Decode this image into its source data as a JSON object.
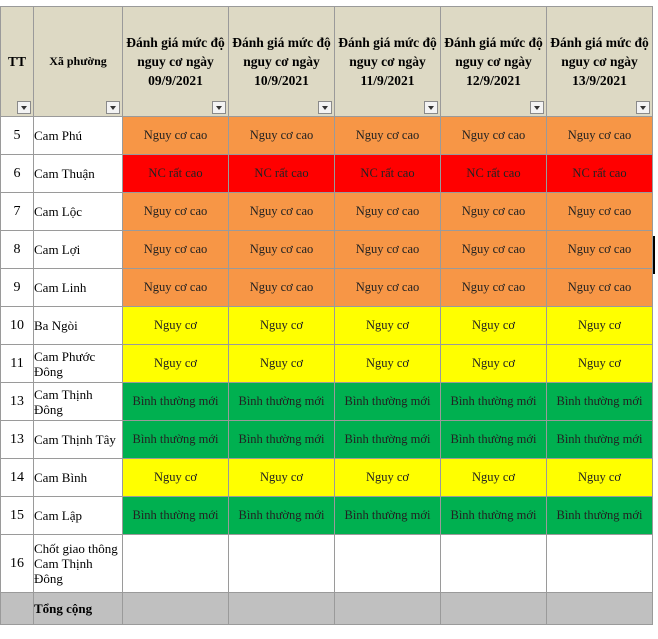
{
  "header": {
    "tt": "TT",
    "ward": "Xã phường",
    "dates": [
      "Đánh giá mức độ nguy cơ ngày 09/9/2021",
      "Đánh giá mức độ nguy cơ ngày 10/9/2021",
      "Đánh giá mức độ nguy cơ ngày 11/9/2021",
      "Đánh giá mức độ nguy cơ ngày 12/9/2021",
      "Đánh giá mức độ nguy cơ ngày 13/9/2021"
    ]
  },
  "status_colors": {
    "Nguy cơ cao": "#f79646",
    "NC rất cao": "#ff0000",
    "Nguy cơ": "#ffff00",
    "Bình thường mới": "#00b050"
  },
  "rows": [
    {
      "tt": "5",
      "name": "Cam Phú",
      "s": [
        "Nguy cơ cao",
        "Nguy cơ cao",
        "Nguy cơ cao",
        "Nguy cơ cao",
        "Nguy cơ cao"
      ]
    },
    {
      "tt": "6",
      "name": "Cam Thuận",
      "s": [
        "NC rất cao",
        "NC rất cao",
        "NC rất cao",
        "NC rất cao",
        "NC rất cao"
      ]
    },
    {
      "tt": "7",
      "name": "Cam Lộc",
      "s": [
        "Nguy cơ cao",
        "Nguy cơ cao",
        "Nguy cơ cao",
        "Nguy cơ cao",
        "Nguy cơ cao"
      ]
    },
    {
      "tt": "8",
      "name": "Cam Lợi",
      "s": [
        "Nguy cơ cao",
        "Nguy cơ cao",
        "Nguy cơ cao",
        "Nguy cơ cao",
        "Nguy cơ cao"
      ]
    },
    {
      "tt": "9",
      "name": "Cam Linh",
      "s": [
        "Nguy cơ cao",
        "Nguy cơ cao",
        "Nguy cơ cao",
        "Nguy cơ cao",
        "Nguy cơ cao"
      ]
    },
    {
      "tt": "10",
      "name": "Ba Ngòi",
      "s": [
        "Nguy cơ",
        "Nguy cơ",
        "Nguy cơ",
        "Nguy cơ",
        "Nguy cơ"
      ]
    },
    {
      "tt": "11",
      "name": "Cam Phước Đông",
      "s": [
        "Nguy cơ",
        "Nguy cơ",
        "Nguy cơ",
        "Nguy cơ",
        "Nguy cơ"
      ]
    },
    {
      "tt": "13",
      "name": "Cam Thịnh Đông",
      "s": [
        "Bình thường mới",
        "Bình thường mới",
        "Bình thường mới",
        "Bình thường mới",
        "Bình thường mới"
      ]
    },
    {
      "tt": "13",
      "name": "Cam Thịnh Tây",
      "s": [
        "Bình thường mới",
        "Bình thường mới",
        "Bình thường mới",
        "Bình thường mới",
        "Bình thường mới"
      ]
    },
    {
      "tt": "14",
      "name": "Cam Bình",
      "s": [
        "Nguy cơ",
        "Nguy cơ",
        "Nguy cơ",
        "Nguy cơ",
        "Nguy cơ"
      ]
    },
    {
      "tt": "15",
      "name": "Cam Lập",
      "s": [
        "Bình thường mới",
        "Bình thường mới",
        "Bình thường mới",
        "Bình thường mới",
        "Bình thường mới"
      ]
    },
    {
      "tt": "16",
      "name": "Chốt giao thông Cam Thịnh Đông",
      "s": [
        "",
        "",
        "",
        "",
        ""
      ]
    }
  ],
  "total": {
    "label": "Tổng cộng"
  }
}
